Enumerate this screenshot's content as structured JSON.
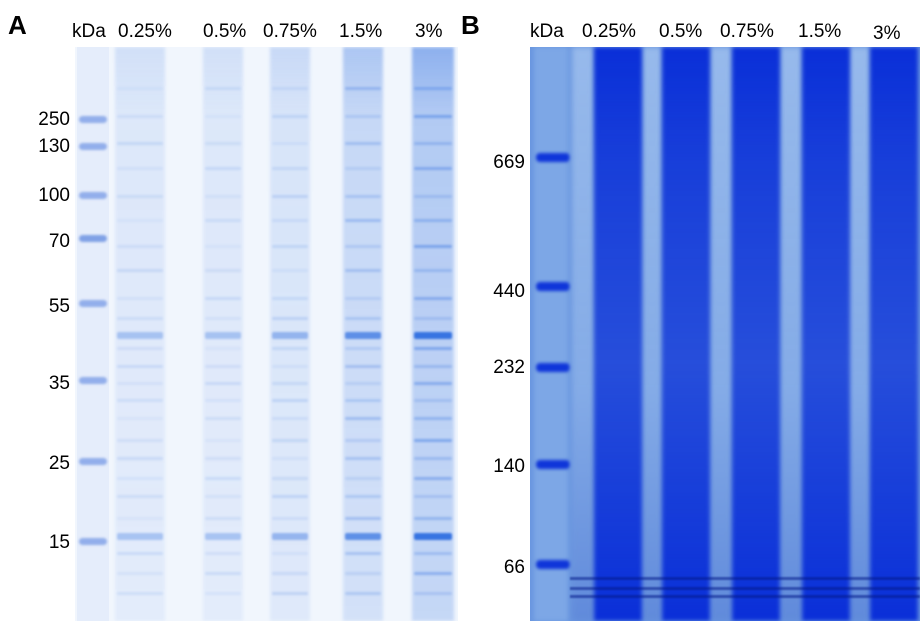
{
  "panels": [
    {
      "letter": "A",
      "header_unit": "kDa",
      "lanes": [
        "0.25%",
        "0.5%",
        "0.75%",
        "1.5%",
        "3%"
      ],
      "markers": [
        "250",
        "130",
        "100",
        "70",
        "55",
        "35",
        "25",
        "15"
      ]
    },
    {
      "letter": "B",
      "header_unit": "kDa",
      "lanes": [
        "0.25%",
        "0.5%",
        "0.75%",
        "1.5%",
        "3%"
      ],
      "markers": [
        "669",
        "440",
        "232",
        "140",
        "66"
      ]
    }
  ],
  "colors": {
    "gel_a_bg": "#f1f6fd",
    "gel_a_stain": "#2f6fe0",
    "gel_b_bg": "#6a97e0",
    "gel_b_stain": "#0a2fd8",
    "marker_stain": "#2c62d6"
  }
}
